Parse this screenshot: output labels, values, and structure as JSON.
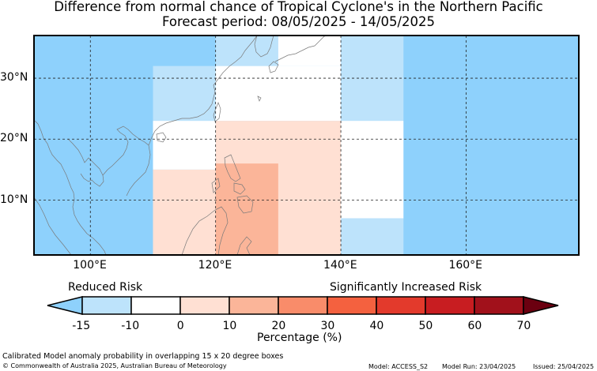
{
  "title": "Difference from normal chance of Tropical Cyclone's in the Northern Pacific",
  "subtitle": "Forecast period: 08/05/2025 - 14/05/2025",
  "map": {
    "lon_range": [
      91,
      178
    ],
    "lat_range": [
      1,
      37
    ],
    "grid_lons": [
      100,
      120,
      140,
      160
    ],
    "grid_lats": [
      10,
      20,
      30
    ],
    "lon_labels": [
      "100°E",
      "120°E",
      "140°E",
      "160°E"
    ],
    "lat_labels": [
      "10°N",
      "20°N",
      "30°N"
    ],
    "colors": {
      "strong_decrease": "#8ed1fc",
      "light_decrease": "#bde3fb",
      "no_change": "#ffffff",
      "low_increase": "#ffe0d3",
      "medium_increase": "#fbb599",
      "land_outline": "#7a7a7a",
      "grid": "#222222"
    },
    "cells": [
      {
        "lon0": 110,
        "lon1": 120,
        "lat0": 23,
        "lat1": 32,
        "cat": "light_decrease"
      },
      {
        "lon0": 110,
        "lon1": 120,
        "lat0": 15,
        "lat1": 23,
        "cat": "no_change"
      },
      {
        "lon0": 110,
        "lon1": 120,
        "lat0": 1,
        "lat1": 15,
        "cat": "low_increase"
      },
      {
        "lon0": 120,
        "lon1": 130,
        "lat0": 32,
        "lat1": 37,
        "cat": "light_decrease"
      },
      {
        "lon0": 120,
        "lon1": 140,
        "lat0": 23,
        "lat1": 32,
        "cat": "no_change"
      },
      {
        "lon0": 130,
        "lon1": 140,
        "lat0": 32,
        "lat1": 37,
        "cat": "no_change"
      },
      {
        "lon0": 120,
        "lon1": 140,
        "lat0": 1,
        "lat1": 23,
        "cat": "low_increase"
      },
      {
        "lon0": 120,
        "lon1": 130,
        "lat0": 1,
        "lat1": 16,
        "cat": "medium_increase"
      },
      {
        "lon0": 140,
        "lon1": 150,
        "lat0": 23,
        "lat1": 37,
        "cat": "light_decrease"
      },
      {
        "lon0": 140,
        "lon1": 150,
        "lat0": 7,
        "lat1": 23,
        "cat": "no_change"
      },
      {
        "lon0": 140,
        "lon1": 150,
        "lat0": 1,
        "lat1": 7,
        "cat": "light_decrease"
      }
    ]
  },
  "colorbar": {
    "left_label": "Reduced Risk",
    "right_label": "Significantly Increased Risk",
    "ticks": [
      "-15",
      "-10",
      "0",
      "10",
      "20",
      "30",
      "40",
      "50",
      "60",
      "70"
    ],
    "segment_colors": [
      "#bde3fb",
      "#ffffff",
      "#ffe0d3",
      "#fbb599",
      "#f98c6a",
      "#f4613f",
      "#e33a2c",
      "#c81d21",
      "#a1111b"
    ],
    "under_color": "#8ed1fc",
    "over_color": "#6b0010",
    "label": "Percentage (%)"
  },
  "footer": {
    "note": "Calibrated Model anomaly probability in overlapping 15 x 20 degree boxes",
    "copyright": "© Commonwealth of Australia 2025, Australian Bureau of Meteorology",
    "model": "Model: ACCESS_S2",
    "model_run": "Model Run: 23/04/2025",
    "issued": "Issued: 25/04/2025"
  }
}
